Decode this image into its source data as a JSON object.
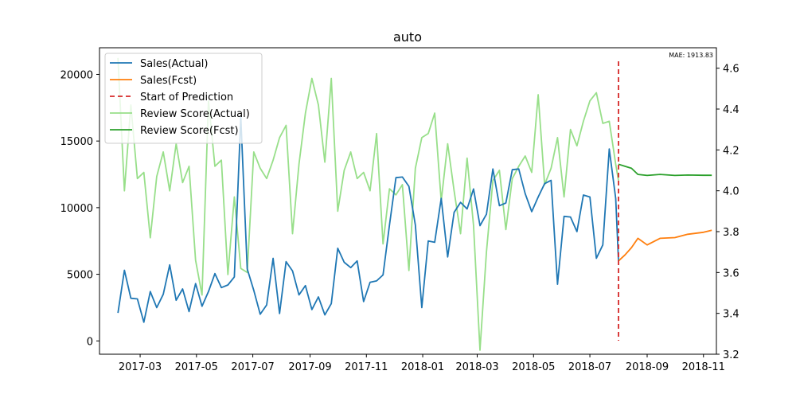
{
  "chart_data": {
    "type": "line",
    "title": "auto",
    "annotation": "MAE: 1913.83",
    "x_ticks": [
      "2017-03",
      "2017-05",
      "2017-07",
      "2017-09",
      "2017-11",
      "2018-01",
      "2018-03",
      "2018-05",
      "2018-07",
      "2018-09",
      "2018-11"
    ],
    "y_left": {
      "ticks": [
        0,
        5000,
        10000,
        15000,
        20000
      ],
      "range": [
        -1000,
        22000
      ]
    },
    "y_right": {
      "ticks": [
        "3.2",
        "3.4",
        "3.6",
        "3.8",
        "4.0",
        "4.2",
        "4.4",
        "4.6"
      ],
      "range": [
        3.2,
        4.7
      ]
    },
    "x_range": [
      "2017-01-16",
      "2018-11-15"
    ],
    "legend": {
      "position": "top-left",
      "entries": [
        {
          "label": "Sales(Actual)",
          "color": "#1f77b4",
          "style": "solid"
        },
        {
          "label": "Sales(Fcst)",
          "color": "#ff7f0e",
          "style": "solid"
        },
        {
          "label": "Start of Prediction",
          "color": "#d62728",
          "style": "dashed"
        },
        {
          "label": "Review Score(Actual)",
          "color": "#98df8a",
          "style": "solid"
        },
        {
          "label": "Review Score(Fcst)",
          "color": "#2ca02c",
          "style": "solid"
        }
      ]
    },
    "prediction_start": "2018-08-01",
    "series": [
      {
        "name": "Sales(Actual)",
        "axis": "left",
        "color": "#1f77b4",
        "x": [
          "2017-02-05",
          "2017-02-12",
          "2017-02-19",
          "2017-02-26",
          "2017-03-05",
          "2017-03-12",
          "2017-03-19",
          "2017-03-26",
          "2017-04-02",
          "2017-04-09",
          "2017-04-16",
          "2017-04-23",
          "2017-04-30",
          "2017-05-07",
          "2017-05-14",
          "2017-05-21",
          "2017-05-28",
          "2017-06-04",
          "2017-06-11",
          "2017-06-18",
          "2017-06-25",
          "2017-07-02",
          "2017-07-09",
          "2017-07-16",
          "2017-07-23",
          "2017-07-30",
          "2017-08-06",
          "2017-08-13",
          "2017-08-20",
          "2017-08-27",
          "2017-09-03",
          "2017-09-10",
          "2017-09-17",
          "2017-09-24",
          "2017-10-01",
          "2017-10-08",
          "2017-10-15",
          "2017-10-22",
          "2017-10-29",
          "2017-11-05",
          "2017-11-12",
          "2017-11-19",
          "2017-11-26",
          "2017-12-03",
          "2017-12-10",
          "2017-12-17",
          "2017-12-24",
          "2017-12-31",
          "2018-01-07",
          "2018-01-14",
          "2018-01-21",
          "2018-01-28",
          "2018-02-04",
          "2018-02-11",
          "2018-02-18",
          "2018-02-25",
          "2018-03-04",
          "2018-03-11",
          "2018-03-18",
          "2018-03-25",
          "2018-04-01",
          "2018-04-08",
          "2018-04-15",
          "2018-04-22",
          "2018-04-29",
          "2018-05-06",
          "2018-05-13",
          "2018-05-20",
          "2018-05-27",
          "2018-06-03",
          "2018-06-10",
          "2018-06-17",
          "2018-06-24",
          "2018-07-01",
          "2018-07-08",
          "2018-07-15",
          "2018-07-22",
          "2018-07-29",
          "2018-08-01"
        ],
        "values": [
          2100,
          5300,
          3200,
          3150,
          1400,
          3700,
          2500,
          3500,
          5700,
          3050,
          3900,
          2200,
          4300,
          2600,
          3700,
          5050,
          4000,
          4200,
          4800,
          16800,
          5400,
          3800,
          2000,
          2700,
          6200,
          2050,
          5950,
          5250,
          3450,
          4150,
          2350,
          3300,
          1950,
          2800,
          6950,
          5900,
          5500,
          6000,
          2950,
          4400,
          4500,
          4950,
          8700,
          12250,
          12300,
          11600,
          8700,
          2500,
          7500,
          7400,
          10700,
          6300,
          9650,
          10400,
          9900,
          11400,
          8650,
          9500,
          12900,
          10150,
          10350,
          12850,
          12900,
          11050,
          9700,
          10800,
          11800,
          12050,
          4250,
          9350,
          9300,
          8200,
          10950,
          10800,
          6200,
          7200,
          14400,
          10700,
          6000
        ]
      },
      {
        "name": "Sales(Fcst)",
        "axis": "left",
        "color": "#ff7f0e",
        "x": [
          "2018-08-01",
          "2018-08-08",
          "2018-08-15",
          "2018-08-22",
          "2018-09-01",
          "2018-09-15",
          "2018-10-01",
          "2018-10-15",
          "2018-11-01",
          "2018-11-10"
        ],
        "values": [
          6000,
          6450,
          7000,
          7700,
          7200,
          7700,
          7750,
          8000,
          8150,
          8300
        ]
      },
      {
        "name": "Review Score(Actual)",
        "axis": "right",
        "color": "#98df8a",
        "x": [
          "2017-02-05",
          "2017-02-12",
          "2017-02-19",
          "2017-02-26",
          "2017-03-05",
          "2017-03-12",
          "2017-03-19",
          "2017-03-26",
          "2017-04-02",
          "2017-04-09",
          "2017-04-16",
          "2017-04-23",
          "2017-04-30",
          "2017-05-07",
          "2017-05-14",
          "2017-05-21",
          "2017-05-28",
          "2017-06-04",
          "2017-06-11",
          "2017-06-18",
          "2017-06-25",
          "2017-07-02",
          "2017-07-09",
          "2017-07-16",
          "2017-07-23",
          "2017-07-30",
          "2017-08-06",
          "2017-08-13",
          "2017-08-20",
          "2017-08-27",
          "2017-09-03",
          "2017-09-10",
          "2017-09-17",
          "2017-09-24",
          "2017-10-01",
          "2017-10-08",
          "2017-10-15",
          "2017-10-22",
          "2017-10-29",
          "2017-11-05",
          "2017-11-12",
          "2017-11-19",
          "2017-11-26",
          "2017-12-03",
          "2017-12-10",
          "2017-12-17",
          "2017-12-24",
          "2017-12-31",
          "2018-01-07",
          "2018-01-14",
          "2018-01-21",
          "2018-01-28",
          "2018-02-04",
          "2018-02-11",
          "2018-02-18",
          "2018-02-25",
          "2018-03-04",
          "2018-03-11",
          "2018-03-18",
          "2018-03-25",
          "2018-04-01",
          "2018-04-08",
          "2018-04-15",
          "2018-04-22",
          "2018-04-29",
          "2018-05-06",
          "2018-05-13",
          "2018-05-20",
          "2018-05-27",
          "2018-06-03",
          "2018-06-10",
          "2018-06-17",
          "2018-06-24",
          "2018-07-01",
          "2018-07-08",
          "2018-07-15",
          "2018-07-22",
          "2018-07-29",
          "2018-08-01"
        ],
        "values": [
          4.65,
          4.0,
          4.42,
          4.06,
          4.09,
          3.77,
          4.07,
          4.19,
          4.0,
          4.23,
          4.04,
          4.12,
          3.66,
          3.49,
          4.44,
          4.12,
          4.15,
          3.59,
          3.97,
          3.62,
          3.6,
          4.19,
          4.11,
          4.06,
          4.15,
          4.26,
          4.32,
          3.79,
          4.13,
          4.38,
          4.55,
          4.42,
          4.14,
          4.55,
          3.9,
          4.1,
          4.19,
          4.06,
          4.09,
          4.0,
          4.28,
          3.74,
          4.01,
          3.98,
          4.03,
          3.61,
          4.11,
          4.26,
          4.28,
          4.38,
          3.95,
          4.23,
          4.0,
          3.79,
          4.16,
          3.83,
          3.22,
          3.7,
          4.05,
          4.1,
          3.81,
          4.06,
          4.12,
          4.17,
          4.09,
          4.47,
          4.03,
          4.11,
          4.26,
          3.97,
          4.3,
          4.22,
          4.34,
          4.44,
          4.48,
          4.33,
          4.34,
          4.13,
          4.05
        ]
      },
      {
        "name": "Review Score(Fcst)",
        "axis": "right",
        "color": "#2ca02c",
        "x": [
          "2018-08-01",
          "2018-08-08",
          "2018-08-15",
          "2018-08-22",
          "2018-09-01",
          "2018-09-15",
          "2018-10-01",
          "2018-10-15",
          "2018-11-01",
          "2018-11-10"
        ],
        "values": [
          4.13,
          4.12,
          4.11,
          4.08,
          4.075,
          4.08,
          4.075,
          4.077,
          4.076,
          4.076
        ]
      }
    ]
  }
}
